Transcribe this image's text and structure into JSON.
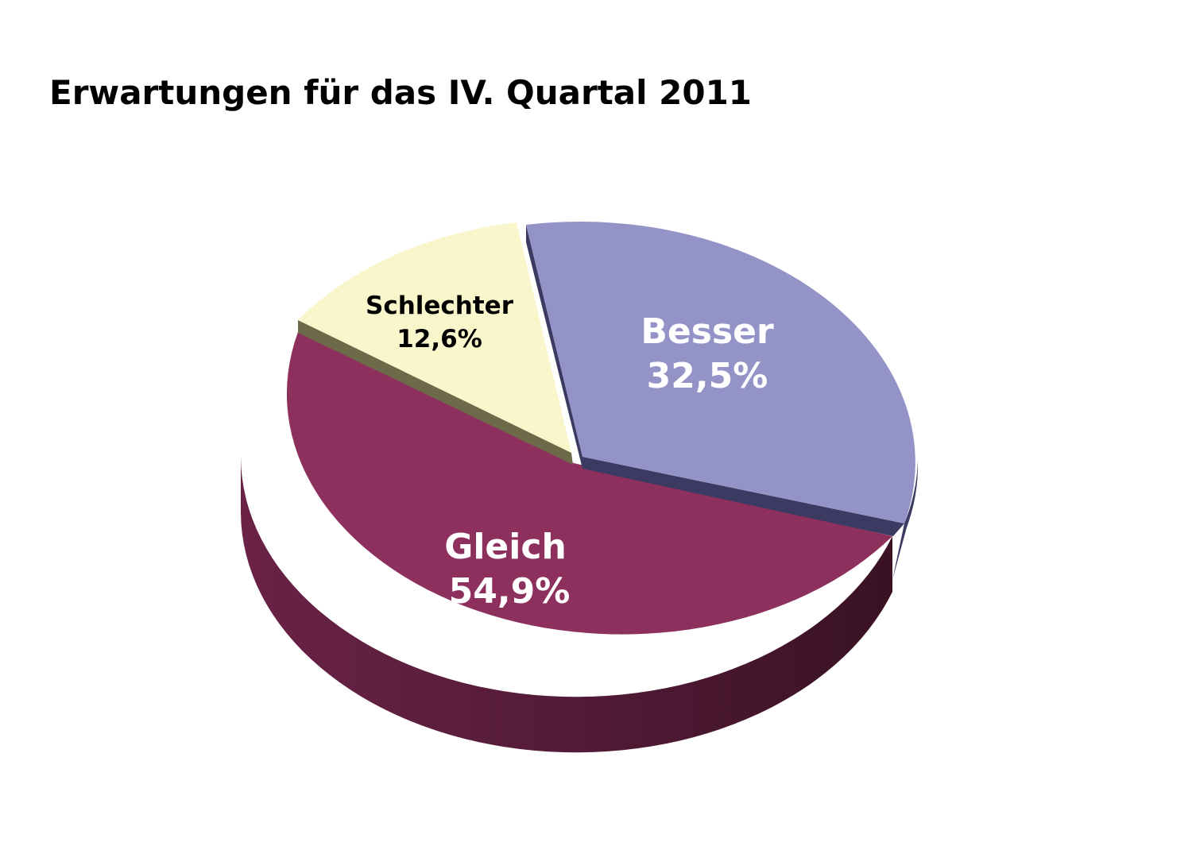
{
  "chart_data": {
    "type": "pie",
    "title": "Erwartungen für das IV. Quartal 2011",
    "slices": [
      {
        "name": "Besser",
        "value": 32.5,
        "label": "32,5%",
        "color": "#9393c7",
        "side_color": "#3a3a62",
        "text_color": "#ffffff"
      },
      {
        "name": "Gleich",
        "value": 54.9,
        "label": "54,9%",
        "color": "#8e305e",
        "side_color": "#5a1d3a",
        "text_color": "#ffffff"
      },
      {
        "name": "Schlechter",
        "value": 12.6,
        "label": "12,6%",
        "color": "#f9f6cb",
        "side_color": "#6d6a4a",
        "text_color": "#000000"
      }
    ],
    "legend": "none",
    "style": "3d-exploded"
  }
}
